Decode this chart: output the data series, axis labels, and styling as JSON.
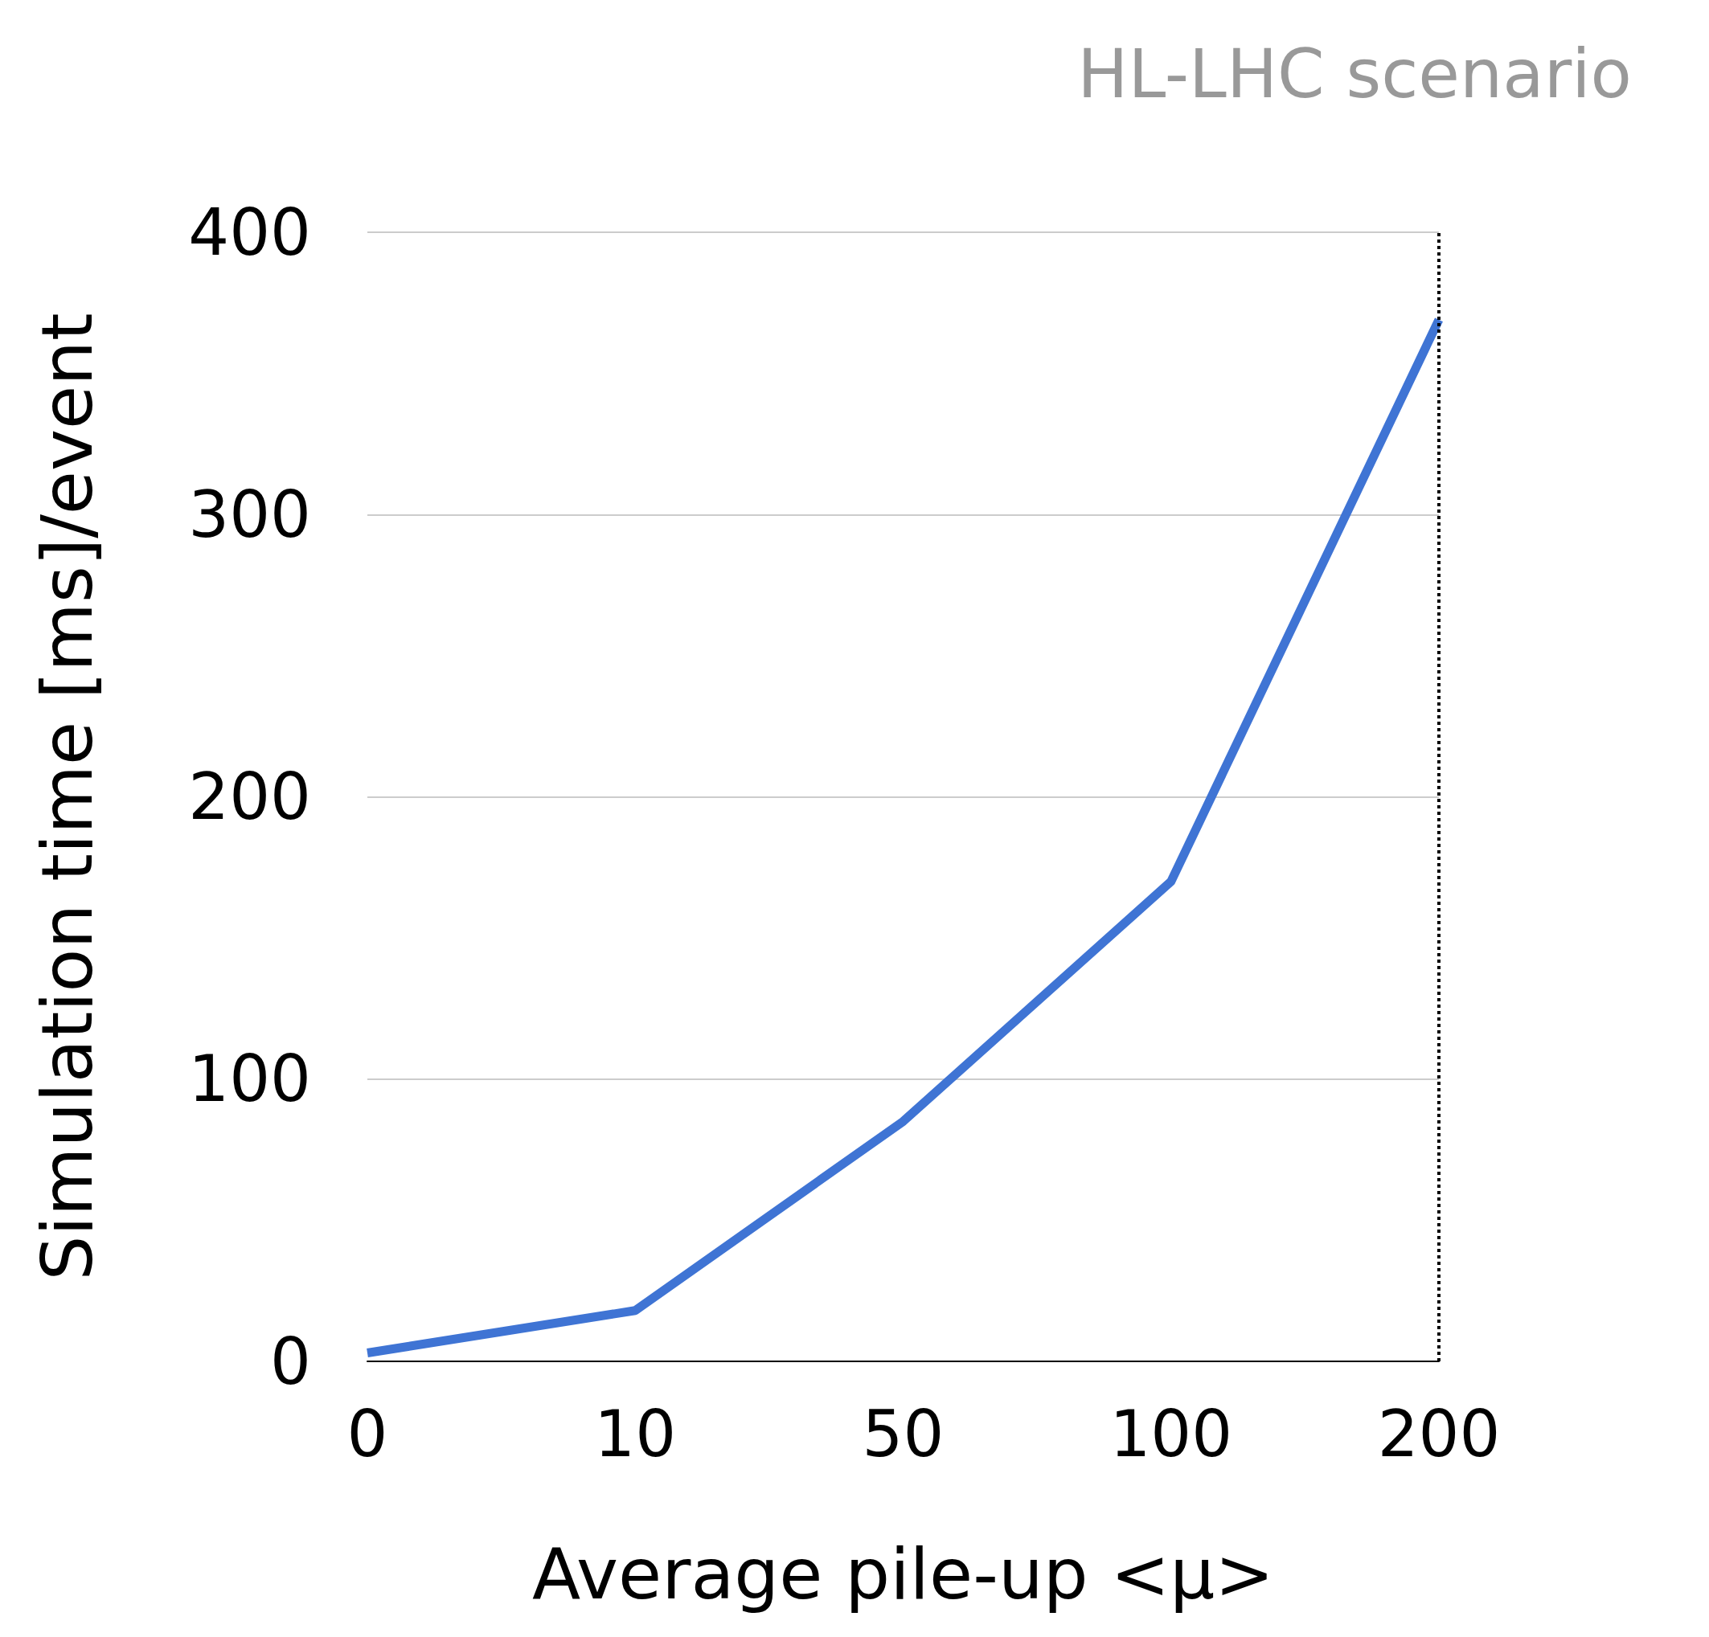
{
  "chart_data": {
    "type": "line",
    "xlabel": "Average pile-up <μ>",
    "ylabel": "Simulation time [ms]/event",
    "categories": [
      "0",
      "10",
      "50",
      "100",
      "200"
    ],
    "series": [
      {
        "color": "#3f74d4",
        "values": [
          3,
          18,
          85,
          170,
          369
        ]
      }
    ],
    "ylim": [
      0,
      400
    ],
    "yticks": [
      0,
      100,
      200,
      300,
      400
    ],
    "grid": "y",
    "marker": "none",
    "ref_lines": [
      {
        "axis": "x",
        "value": "200",
        "label": "HL-LHC scenario",
        "color": "#000000",
        "line_style": "dotted"
      }
    ]
  }
}
